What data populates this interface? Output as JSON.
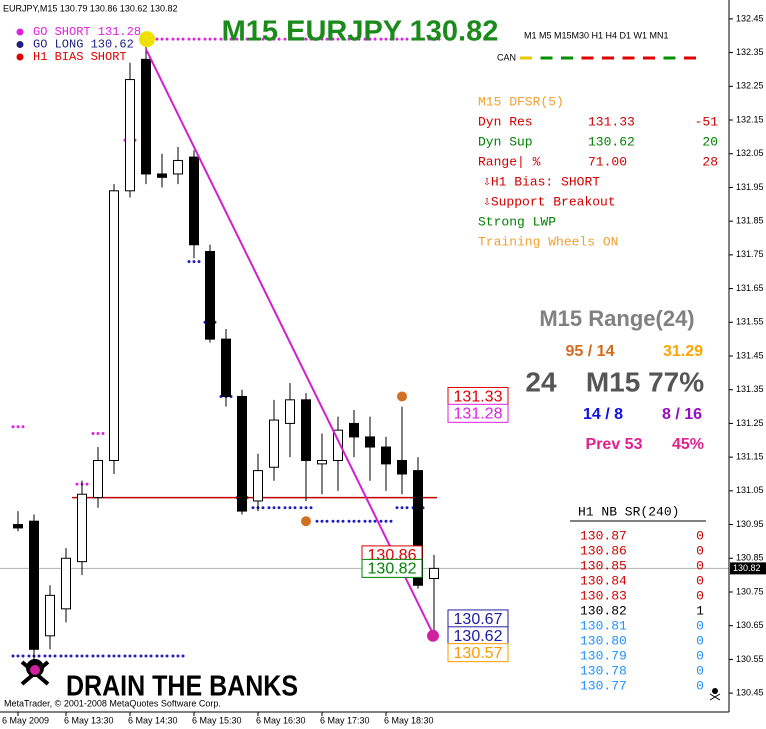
{
  "chart_data": {
    "type": "candlestick",
    "title": "M15 EURJPY 130.82",
    "header": "EURJPY,M15  130.79 130.86 130.62 130.82",
    "categories": [
      "6 May 2009",
      null,
      null,
      "6 May 13:30",
      null,
      null,
      null,
      "6 May 14:30",
      null,
      null,
      null,
      "6 May 15:30",
      null,
      null,
      null,
      "6 May 16:30",
      null,
      null,
      null,
      "6 May 17:30",
      null,
      null,
      null,
      "6 May 18:30",
      null,
      null,
      null
    ],
    "open": [
      130.95,
      130.96,
      130.62,
      130.7,
      130.84,
      131.03,
      131.14,
      131.94,
      132.33,
      131.99,
      131.99,
      132.04,
      131.76,
      131.5,
      131.33,
      131.02,
      131.12,
      131.25,
      131.32,
      131.13,
      131.14,
      131.25,
      131.21,
      131.18,
      131.14,
      131.11,
      130.79
    ],
    "high": [
      130.99,
      130.98,
      130.77,
      130.88,
      131.08,
      131.18,
      131.96,
      132.32,
      132.4,
      132.05,
      132.07,
      132.06,
      131.78,
      131.53,
      131.35,
      131.16,
      131.32,
      131.37,
      131.34,
      131.22,
      131.27,
      131.29,
      131.27,
      131.21,
      131.3,
      131.15,
      130.86
    ],
    "low": [
      130.93,
      130.52,
      130.58,
      130.66,
      130.8,
      131.0,
      131.1,
      131.92,
      131.96,
      131.95,
      131.96,
      131.74,
      131.49,
      131.3,
      130.98,
      130.99,
      131.08,
      131.15,
      131.02,
      131.04,
      131.05,
      131.15,
      131.08,
      131.05,
      131.04,
      130.76,
      130.62
    ],
    "close": [
      130.94,
      130.58,
      130.74,
      130.85,
      131.04,
      131.14,
      131.94,
      132.27,
      131.99,
      131.98,
      132.03,
      131.78,
      131.5,
      131.33,
      130.99,
      131.11,
      131.26,
      131.32,
      131.14,
      131.14,
      131.23,
      131.21,
      131.18,
      131.13,
      131.1,
      130.77,
      130.82
    ],
    "ylim": [
      130.394,
      132.506
    ],
    "yticks": [
      132.45,
      132.35,
      132.25,
      132.15,
      132.05,
      131.95,
      131.85,
      131.75,
      131.65,
      131.55,
      131.45,
      131.35,
      131.25,
      131.15,
      131.05,
      130.95,
      130.85,
      130.75,
      130.65,
      130.55,
      130.45
    ],
    "current_price": 130.82,
    "breakout_level": 131.03,
    "resistance_dots": [
      131.24,
      null,
      null,
      null,
      131.07,
      131.22,
      null,
      132.09,
      132.39,
      132.39,
      132.39,
      132.39,
      132.39,
      132.39,
      132.39,
      132.39,
      132.39,
      132.39,
      132.39,
      132.39,
      132.39,
      132.39,
      132.39,
      132.39,
      132.39,
      132.39,
      132.39
    ],
    "resistance_color": "#e020e0",
    "support_dots": [
      130.56,
      130.56,
      130.56,
      130.56,
      130.56,
      130.56,
      130.56,
      130.56,
      130.56,
      130.56,
      130.56,
      131.73,
      131.55,
      131.33,
      131.03,
      131.0,
      131.0,
      131.0,
      131.0,
      130.96,
      130.96,
      130.96,
      130.96,
      130.96,
      131.0,
      131.0,
      null
    ],
    "support_color": "#2020c0",
    "trend_line": [
      null,
      null,
      null,
      null,
      null,
      null,
      null,
      null,
      132.36,
      null,
      null,
      null,
      null,
      null,
      null,
      null,
      null,
      null,
      null,
      null,
      null,
      null,
      null,
      null,
      null,
      null,
      130.62
    ],
    "trend_color": "#d020d0",
    "price_labels": [
      {
        "value": 131.33,
        "color": "#e00000"
      },
      {
        "value": 131.28,
        "color": "#e020e0"
      },
      {
        "value": 130.86,
        "color": "#e00000"
      },
      {
        "value": 130.82,
        "color": "#008000"
      },
      {
        "value": 130.67,
        "color": "#2020a0"
      },
      {
        "value": 130.62,
        "color": "#2020a0"
      },
      {
        "value": 130.57,
        "color": "#ff9900"
      }
    ],
    "markers": [
      {
        "value": 132.39,
        "color": "#f0e000"
      },
      {
        "value": 131.33,
        "color": "#d07020"
      },
      {
        "value": 130.96,
        "color": "#d07020"
      },
      {
        "value": 130.62,
        "color": "#d020a0"
      }
    ]
  },
  "signals": [
    {
      "text": "GO SHORT 131.28",
      "color": "#e020e0"
    },
    {
      "text": "GO LONG 130.62",
      "color": "#202080"
    },
    {
      "text": "H1 BIAS SHORT",
      "color": "#e00000"
    }
  ],
  "timeframes": "M1 M5 M15M30 H1 H4 D1 W1 MN1",
  "can": {
    "label": "CAN",
    "colors": [
      "#e8c800",
      "#009000",
      "#009000",
      "#e00000",
      "#e00000",
      "#e00000",
      "#e00000",
      "#009000",
      "#e00000"
    ]
  },
  "dfsr": {
    "title": "M15 DFSR(5)",
    "rows": [
      [
        "Dyn Res",
        "131.33",
        "-51"
      ],
      [
        "Dyn Sup",
        "130.62",
        "20"
      ],
      [
        "Range| %",
        "71.00",
        "28"
      ]
    ],
    "notes": [
      "⇩H1 Bias: SHORT",
      "⇩Support Breakout",
      "Strong LWP",
      "Training Wheels ON"
    ]
  },
  "range": {
    "title": "M15 Range(24)",
    "a": "95 / 14",
    "b": "31.29",
    "c": "24",
    "d": "M15 77%",
    "e": "14 / 8",
    "f": "8 / 16",
    "g": "Prev 53",
    "h": "45%"
  },
  "sr_table": {
    "title": "H1 NB SR(240)",
    "rows": [
      [
        "130.87",
        "0"
      ],
      [
        "130.86",
        "0"
      ],
      [
        "130.85",
        "0"
      ],
      [
        "130.84",
        "0"
      ],
      [
        "130.83",
        "0"
      ],
      [
        "130.82",
        "1"
      ],
      [
        "130.81",
        "0"
      ],
      [
        "130.80",
        "0"
      ],
      [
        "130.79",
        "0"
      ],
      [
        "130.78",
        "0"
      ],
      [
        "130.77",
        "0"
      ]
    ]
  },
  "brand": "DRAIN THE BANKS",
  "copyright": "MetaTrader, © 2001-2008 MetaQuotes Software Corp."
}
